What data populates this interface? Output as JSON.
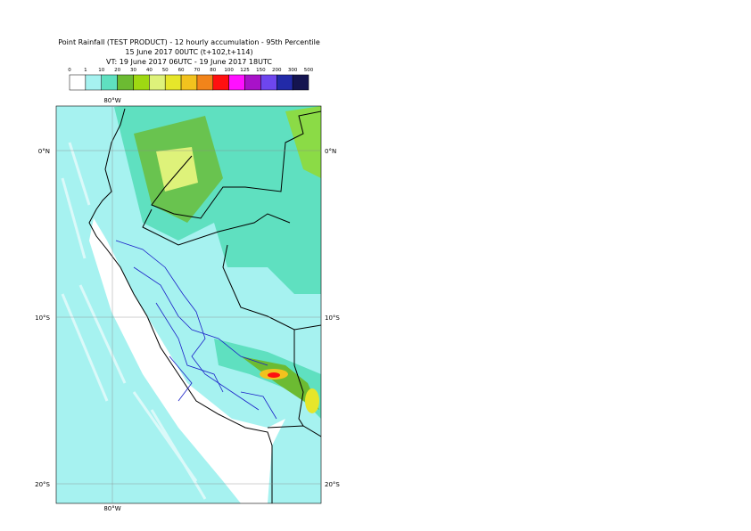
{
  "header": {
    "title_lines": [
      "Point Rainfall (TEST PRODUCT) - 12 hourly accumulation - 95th Percentile",
      "15 June 2017 00UTC (t+102,t+114)",
      "VT: 19 June 2017 06UTC - 19 June 2017 18UTC"
    ]
  },
  "legend": {
    "levels": [
      0,
      1,
      10,
      20,
      30,
      40,
      50,
      60,
      70,
      80,
      100,
      125,
      150,
      200,
      300,
      500
    ],
    "colors": [
      "#ffffff",
      "#a6f2f0",
      "#5fe0c0",
      "#6cbb32",
      "#9ed812",
      "#def27a",
      "#e6e62a",
      "#f2c21e",
      "#f2841a",
      "#ff1010",
      "#ff10ff",
      "#a812c8",
      "#6e46ee",
      "#222aa8",
      "#141450"
    ]
  },
  "map": {
    "lon_labels": [
      "80°W"
    ],
    "lat_labels": [
      "0°N",
      "10°S",
      "20°S"
    ]
  }
}
